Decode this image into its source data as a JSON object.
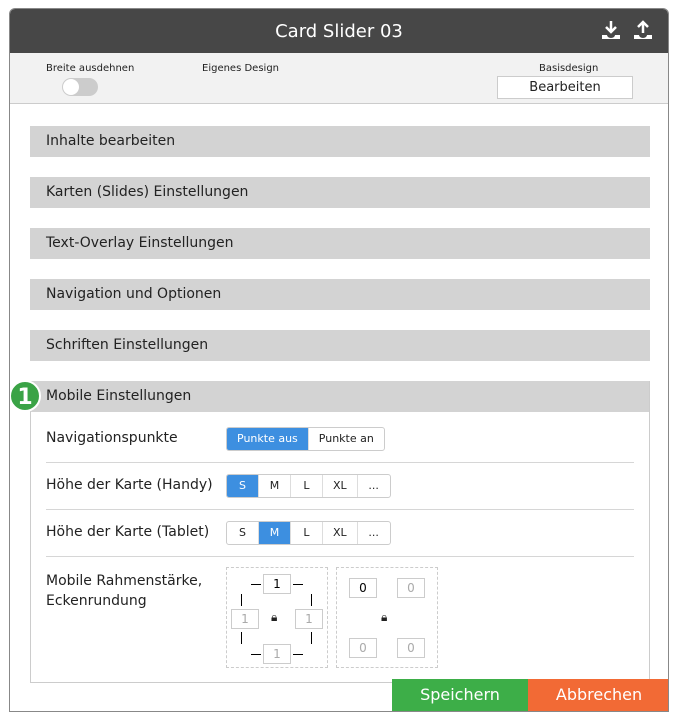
{
  "header": {
    "title": "Card Slider 03",
    "icons": [
      "download-icon",
      "upload-icon"
    ]
  },
  "toolbar": {
    "expand_label": "Breite ausdehnen",
    "expand_on": false,
    "custom_design_label": "Eigenes Design",
    "base_design_label": "Basisdesign",
    "edit_label": "Bearbeiten"
  },
  "sections": [
    "Inhalte bearbeiten",
    "Karten (Slides) Einstellungen",
    "Text-Overlay Einstellungen",
    "Navigation und Optionen",
    "Schriften Einstellungen",
    "Mobile Einstellungen"
  ],
  "badge": "1",
  "mobile": {
    "nav_dots": {
      "label": "Navigationspunkte",
      "options": [
        "Punkte aus",
        "Punkte an"
      ],
      "selected": "Punkte aus"
    },
    "height_phone": {
      "label": "Höhe der Karte (Handy)",
      "options": [
        "S",
        "M",
        "L",
        "XL",
        "..."
      ],
      "selected": "S"
    },
    "height_tablet": {
      "label": "Höhe der Karte (Tablet)",
      "options": [
        "S",
        "M",
        "L",
        "XL",
        "..."
      ],
      "selected": "M"
    },
    "border": {
      "label_line1": "Mobile Rahmenstärke,",
      "label_line2": "Eckenrundung",
      "top": "1",
      "left": "1",
      "right": "1",
      "bottom": "1",
      "r_tl": "0",
      "r_tr": "0",
      "r_bl": "0",
      "r_br": "0"
    }
  },
  "footer": {
    "save": "Speichern",
    "cancel": "Abbrechen"
  },
  "colors": {
    "header": "#474747",
    "accent": "#3d8fe0",
    "save": "#3dae48",
    "cancel": "#f26a35",
    "badge": "#3aa346"
  }
}
